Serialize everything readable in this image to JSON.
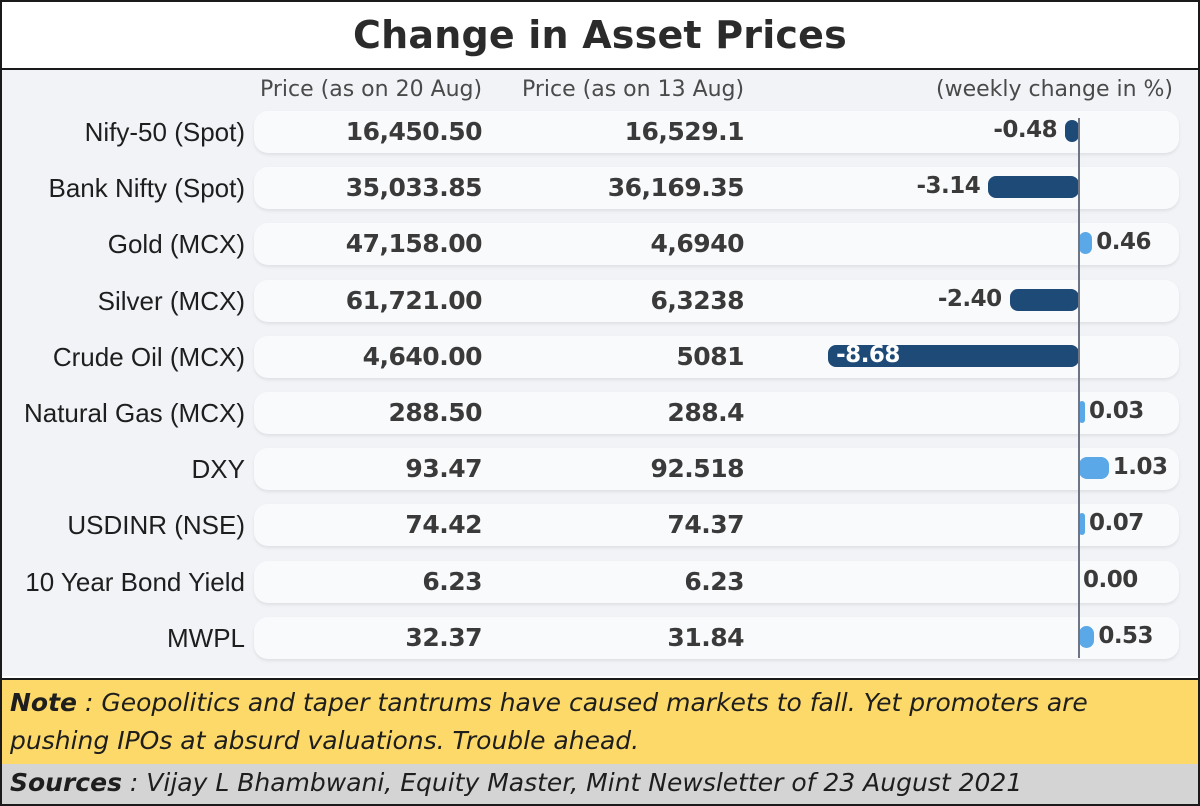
{
  "title": "Change in Asset Prices",
  "headers": {
    "price_current": "Price (as on 20 Aug)",
    "price_previous": "Price (as on 13 Aug)",
    "weekly_change": "(weekly change in %)"
  },
  "chart_data": {
    "type": "bar",
    "title": "Change in Asset Prices",
    "xlabel": "(weekly change in %)",
    "categories": [
      "Nify-50 (Spot)",
      "Bank Nifty (Spot)",
      "Gold (MCX)",
      "Silver (MCX)",
      "Crude Oil (MCX)",
      "Natural Gas (MCX)",
      "DXY",
      "USDINR (NSE)",
      "10 Year Bond Yield",
      "MWPL"
    ],
    "price_20_aug": [
      "16,450.50",
      "35,033.85",
      "47,158.00",
      "61,721.00",
      "4,640.00",
      "288.50",
      "93.47",
      "74.42",
      "6.23",
      "32.37"
    ],
    "price_13_aug": [
      "16,529.1",
      "36,169.35",
      "4,6940",
      "6,3238",
      "5081",
      "288.4",
      "92.518",
      "74.37",
      "6.23",
      "31.84"
    ],
    "values": [
      -0.48,
      -3.14,
      0.46,
      -2.4,
      -8.68,
      0.03,
      1.03,
      0.07,
      0.0,
      0.53
    ],
    "value_labels": [
      "-0.48",
      "-3.14",
      "0.46",
      "-2.40",
      "-8.68",
      "0.03",
      "1.03",
      "0.07",
      "0.00",
      "0.53"
    ],
    "colors": {
      "negative": "#1e4a78",
      "positive": "#5aa8e8"
    }
  },
  "note": {
    "label": "Note",
    "text": " : Geopolitics and taper tantrums have caused markets to fall.  Yet promoters are pushing IPOs at absurd valuations. Trouble ahead."
  },
  "sources": {
    "label": "Sources",
    "text": " : Vijay L Bhambwani, Equity Master, Mint Newsletter of 23 August 2021"
  }
}
